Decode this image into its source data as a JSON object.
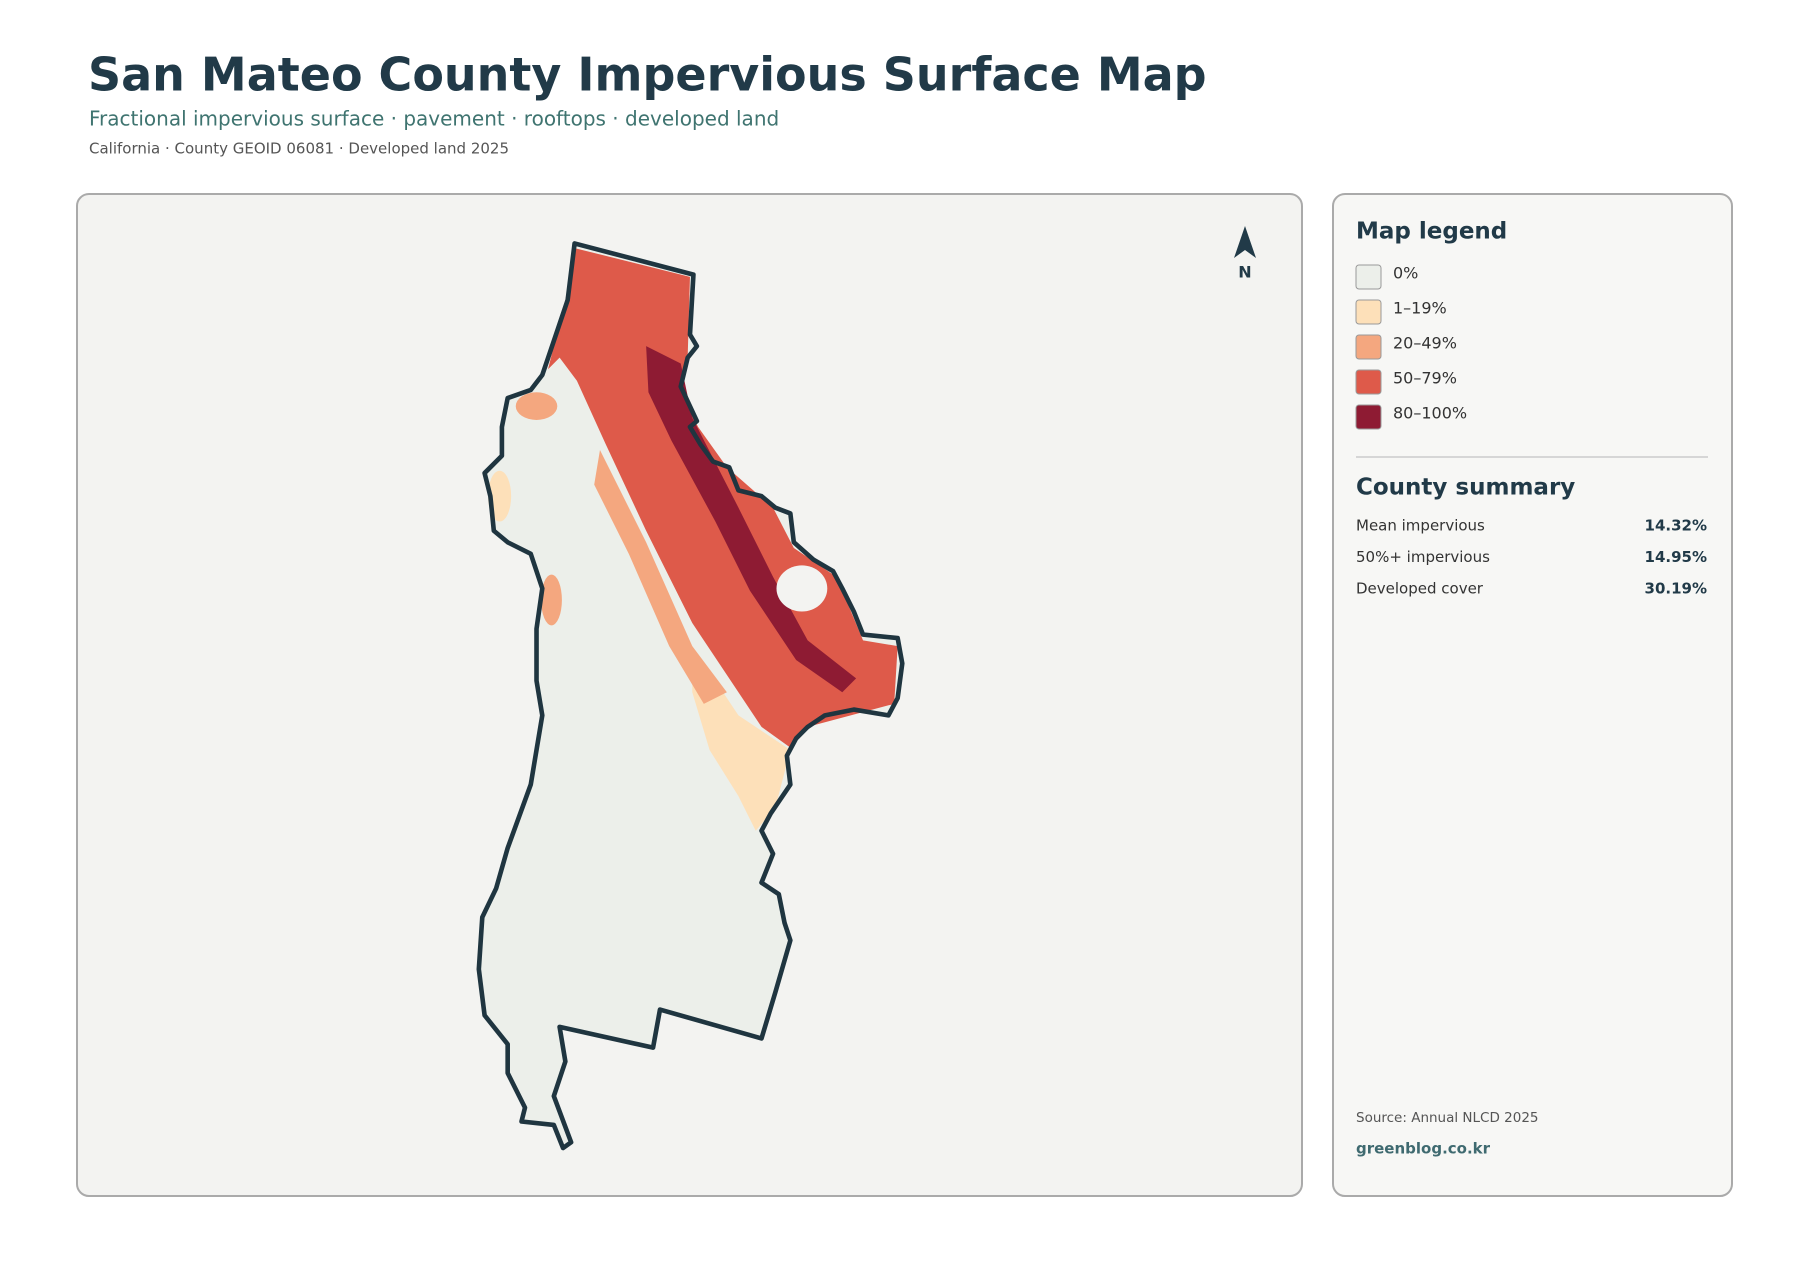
{
  "header": {
    "title": "San Mateo County Impervious Surface Map",
    "subtitle": "Fractional impervious surface · pavement · rooftops · developed land",
    "meta": "California · County GEOID 06081 · Developed land 2025"
  },
  "map": {
    "north_label": "N"
  },
  "legend": {
    "title": "Map legend",
    "items": [
      {
        "label": "0%",
        "color": "#ecefea"
      },
      {
        "label": "1–19%",
        "color": "#fde0b9"
      },
      {
        "label": "20–49%",
        "color": "#f4a77f"
      },
      {
        "label": "50–79%",
        "color": "#de5a4a"
      },
      {
        "label": "80–100%",
        "color": "#8e1b33"
      }
    ]
  },
  "summary": {
    "title": "County summary",
    "rows": [
      {
        "label": "Mean impervious",
        "value": "14.32%"
      },
      {
        "label": "50%+ impervious",
        "value": "14.95%"
      },
      {
        "label": "Developed cover",
        "value": "30.19%"
      }
    ]
  },
  "footer": {
    "source": "Source: Annual NLCD 2025",
    "site": "greenblog.co.kr"
  }
}
